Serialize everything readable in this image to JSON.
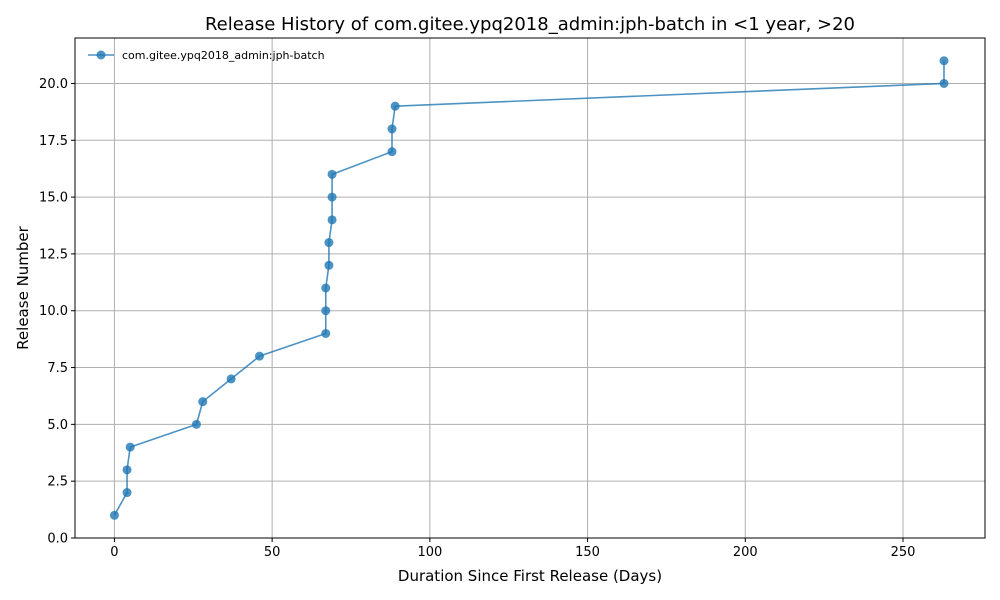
{
  "chart_data": {
    "type": "line",
    "title": "Release History of com.gitee.ypq2018_admin:jph-batch in <1 year, >20",
    "xlabel": "Duration Since First Release (Days)",
    "ylabel": "Release Number",
    "xlim": [
      -12.5,
      276
    ],
    "ylim": [
      0,
      22
    ],
    "xticks": [
      0,
      50,
      100,
      150,
      200,
      250
    ],
    "yticks": [
      0.0,
      2.5,
      5.0,
      7.5,
      10.0,
      12.5,
      15.0,
      17.5,
      20.0
    ],
    "ytick_labels": [
      "0.0",
      "2.5",
      "5.0",
      "7.5",
      "10.0",
      "12.5",
      "15.0",
      "17.5",
      "20.0"
    ],
    "grid": true,
    "legend_position": "top-left",
    "series": [
      {
        "name": "com.gitee.ypq2018_admin:jph-batch",
        "color": "#1f77b4",
        "x": [
          0,
          4,
          4,
          5,
          26,
          28,
          37,
          46,
          67,
          67,
          67,
          68,
          68,
          69,
          69,
          69,
          88,
          88,
          89,
          263,
          263
        ],
        "y": [
          1,
          2,
          3,
          4,
          5,
          6,
          7,
          8,
          9,
          10,
          11,
          12,
          13,
          14,
          15,
          16,
          17,
          18,
          19,
          20,
          21
        ]
      }
    ]
  }
}
